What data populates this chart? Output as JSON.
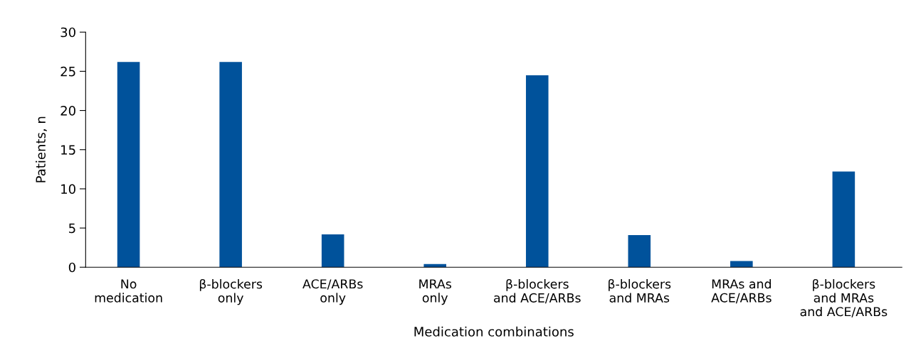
{
  "chart_data": {
    "type": "bar",
    "xlabel": "Medication combinations",
    "ylabel": "Patients, n",
    "categories": [
      "No\nmedication",
      "β-blockers\nonly",
      "ACE/ARBs\nonly",
      "MRAs\nonly",
      "β-blockers\nand ACE/ARBs",
      "β-blockers\nand MRAs",
      "MRAs and\nACE/ARBs",
      "β-blockers\nand MRAs\nand ACE/ARBs"
    ],
    "values": [
      26.2,
      26.2,
      4.2,
      0.4,
      24.5,
      4.1,
      0.8,
      12.2
    ],
    "color": "#00529b",
    "ylim": [
      0,
      30
    ],
    "yticks": [
      0,
      5,
      10,
      15,
      20,
      25,
      30
    ],
    "grid": false,
    "legend": false
  }
}
